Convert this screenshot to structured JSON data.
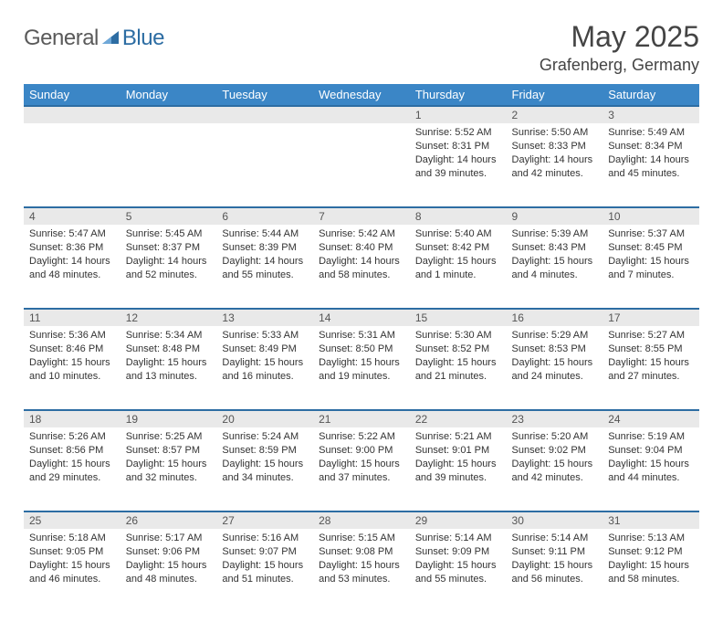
{
  "brand": {
    "name_grey": "General",
    "name_blue": "Blue",
    "color_grey": "#5a5a5a",
    "color_blue": "#2d6da3"
  },
  "title": "May 2025",
  "location": "Grafenberg, Germany",
  "colors": {
    "header_bg": "#3b86c6",
    "header_text": "#ffffff",
    "row_divider": "#2d6da3",
    "daynum_bg": "#e9e9e9",
    "text": "#333333",
    "title_text": "#444444"
  },
  "fonts": {
    "title_size": 32,
    "location_size": 18,
    "header_size": 13,
    "cell_size": 11
  },
  "days_of_week": [
    "Sunday",
    "Monday",
    "Tuesday",
    "Wednesday",
    "Thursday",
    "Friday",
    "Saturday"
  ],
  "weeks": [
    {
      "nums": [
        "",
        "",
        "",
        "",
        "1",
        "2",
        "3"
      ],
      "cells": [
        null,
        null,
        null,
        null,
        {
          "sunrise": "5:52 AM",
          "sunset": "8:31 PM",
          "daylight": "14 hours and 39 minutes."
        },
        {
          "sunrise": "5:50 AM",
          "sunset": "8:33 PM",
          "daylight": "14 hours and 42 minutes."
        },
        {
          "sunrise": "5:49 AM",
          "sunset": "8:34 PM",
          "daylight": "14 hours and 45 minutes."
        }
      ]
    },
    {
      "nums": [
        "4",
        "5",
        "6",
        "7",
        "8",
        "9",
        "10"
      ],
      "cells": [
        {
          "sunrise": "5:47 AM",
          "sunset": "8:36 PM",
          "daylight": "14 hours and 48 minutes."
        },
        {
          "sunrise": "5:45 AM",
          "sunset": "8:37 PM",
          "daylight": "14 hours and 52 minutes."
        },
        {
          "sunrise": "5:44 AM",
          "sunset": "8:39 PM",
          "daylight": "14 hours and 55 minutes."
        },
        {
          "sunrise": "5:42 AM",
          "sunset": "8:40 PM",
          "daylight": "14 hours and 58 minutes."
        },
        {
          "sunrise": "5:40 AM",
          "sunset": "8:42 PM",
          "daylight": "15 hours and 1 minute."
        },
        {
          "sunrise": "5:39 AM",
          "sunset": "8:43 PM",
          "daylight": "15 hours and 4 minutes."
        },
        {
          "sunrise": "5:37 AM",
          "sunset": "8:45 PM",
          "daylight": "15 hours and 7 minutes."
        }
      ]
    },
    {
      "nums": [
        "11",
        "12",
        "13",
        "14",
        "15",
        "16",
        "17"
      ],
      "cells": [
        {
          "sunrise": "5:36 AM",
          "sunset": "8:46 PM",
          "daylight": "15 hours and 10 minutes."
        },
        {
          "sunrise": "5:34 AM",
          "sunset": "8:48 PM",
          "daylight": "15 hours and 13 minutes."
        },
        {
          "sunrise": "5:33 AM",
          "sunset": "8:49 PM",
          "daylight": "15 hours and 16 minutes."
        },
        {
          "sunrise": "5:31 AM",
          "sunset": "8:50 PM",
          "daylight": "15 hours and 19 minutes."
        },
        {
          "sunrise": "5:30 AM",
          "sunset": "8:52 PM",
          "daylight": "15 hours and 21 minutes."
        },
        {
          "sunrise": "5:29 AM",
          "sunset": "8:53 PM",
          "daylight": "15 hours and 24 minutes."
        },
        {
          "sunrise": "5:27 AM",
          "sunset": "8:55 PM",
          "daylight": "15 hours and 27 minutes."
        }
      ]
    },
    {
      "nums": [
        "18",
        "19",
        "20",
        "21",
        "22",
        "23",
        "24"
      ],
      "cells": [
        {
          "sunrise": "5:26 AM",
          "sunset": "8:56 PM",
          "daylight": "15 hours and 29 minutes."
        },
        {
          "sunrise": "5:25 AM",
          "sunset": "8:57 PM",
          "daylight": "15 hours and 32 minutes."
        },
        {
          "sunrise": "5:24 AM",
          "sunset": "8:59 PM",
          "daylight": "15 hours and 34 minutes."
        },
        {
          "sunrise": "5:22 AM",
          "sunset": "9:00 PM",
          "daylight": "15 hours and 37 minutes."
        },
        {
          "sunrise": "5:21 AM",
          "sunset": "9:01 PM",
          "daylight": "15 hours and 39 minutes."
        },
        {
          "sunrise": "5:20 AM",
          "sunset": "9:02 PM",
          "daylight": "15 hours and 42 minutes."
        },
        {
          "sunrise": "5:19 AM",
          "sunset": "9:04 PM",
          "daylight": "15 hours and 44 minutes."
        }
      ]
    },
    {
      "nums": [
        "25",
        "26",
        "27",
        "28",
        "29",
        "30",
        "31"
      ],
      "cells": [
        {
          "sunrise": "5:18 AM",
          "sunset": "9:05 PM",
          "daylight": "15 hours and 46 minutes."
        },
        {
          "sunrise": "5:17 AM",
          "sunset": "9:06 PM",
          "daylight": "15 hours and 48 minutes."
        },
        {
          "sunrise": "5:16 AM",
          "sunset": "9:07 PM",
          "daylight": "15 hours and 51 minutes."
        },
        {
          "sunrise": "5:15 AM",
          "sunset": "9:08 PM",
          "daylight": "15 hours and 53 minutes."
        },
        {
          "sunrise": "5:14 AM",
          "sunset": "9:09 PM",
          "daylight": "15 hours and 55 minutes."
        },
        {
          "sunrise": "5:14 AM",
          "sunset": "9:11 PM",
          "daylight": "15 hours and 56 minutes."
        },
        {
          "sunrise": "5:13 AM",
          "sunset": "9:12 PM",
          "daylight": "15 hours and 58 minutes."
        }
      ]
    }
  ],
  "labels": {
    "sunrise": "Sunrise:",
    "sunset": "Sunset:",
    "daylight": "Daylight:"
  }
}
